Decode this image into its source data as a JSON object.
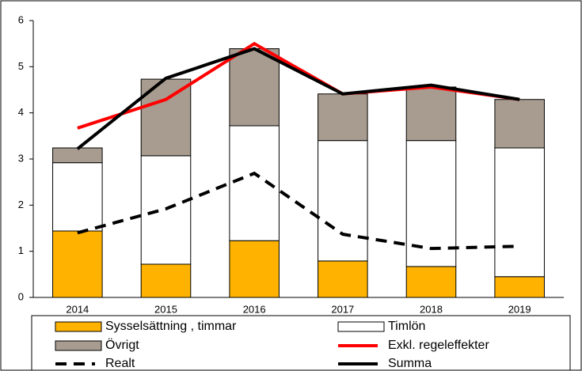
{
  "chart_data": {
    "type": "bar",
    "stacked": true,
    "categories": [
      "2014",
      "2015",
      "2016",
      "2017",
      "2018",
      "2019"
    ],
    "ylim": [
      0,
      6
    ],
    "yticks": [
      0,
      1,
      2,
      3,
      4,
      5,
      6
    ],
    "series": [
      {
        "name": "Sysselsättning , timmar",
        "type": "bar",
        "color": "#ffb300",
        "values": [
          1.44,
          0.72,
          1.23,
          0.79,
          0.67,
          0.45
        ]
      },
      {
        "name": "Timlön",
        "type": "bar",
        "color": "#ffffff",
        "values": [
          1.48,
          2.35,
          2.49,
          2.61,
          2.73,
          2.79
        ]
      },
      {
        "name": "Övrigt",
        "type": "bar",
        "color": "#a89c90",
        "values": [
          0.32,
          1.66,
          1.67,
          1.01,
          1.16,
          1.05
        ]
      },
      {
        "name": "Exkl. regeleffekter",
        "type": "line",
        "color": "#ff0000",
        "values": [
          3.67,
          4.29,
          5.5,
          4.41,
          4.56,
          4.29
        ]
      },
      {
        "name": "Realt",
        "type": "line",
        "dashed": true,
        "color": "#000000",
        "values": [
          1.4,
          1.92,
          2.69,
          1.37,
          1.06,
          1.11
        ]
      },
      {
        "name": "Summa",
        "type": "line",
        "color": "#000000",
        "values": [
          3.22,
          4.75,
          5.39,
          4.41,
          4.6,
          4.29
        ]
      }
    ]
  }
}
